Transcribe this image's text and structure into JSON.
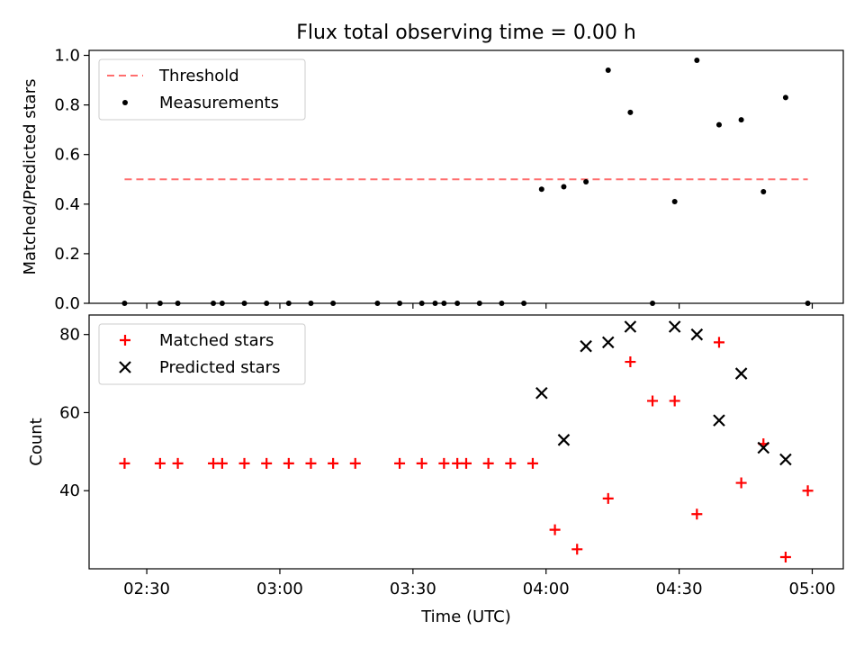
{
  "title": "Flux total observing time = 0.00 h",
  "colors": {
    "threshold": "#ff6e6e",
    "measurements": "#000000",
    "matched": "#ff0000",
    "predicted": "#000000"
  },
  "chart_data": [
    {
      "type": "scatter",
      "panel": "top",
      "ylabel": "Matched/Predicted stars",
      "ylim": [
        0,
        1.02
      ],
      "yticks": [
        0.0,
        0.2,
        0.4,
        0.6,
        0.8,
        1.0
      ],
      "ytick_labels": [
        "0.0",
        "0.2",
        "0.4",
        "0.6",
        "0.8",
        "1.0"
      ],
      "xlim": [
        "02:17",
        "05:07"
      ],
      "xticks": [
        "02:30",
        "03:00",
        "03:30",
        "04:00",
        "04:30",
        "05:00"
      ],
      "legend": {
        "placement": "upper-left",
        "entries": [
          "Threshold",
          "Measurements"
        ]
      },
      "series": [
        {
          "name": "Threshold",
          "type": "line",
          "style": "dashed",
          "x": [
            "02:25",
            "04:59"
          ],
          "y": [
            0.5,
            0.5
          ]
        },
        {
          "name": "Measurements",
          "type": "scatter",
          "x": [
            "02:25",
            "02:33",
            "02:37",
            "02:45",
            "02:47",
            "02:52",
            "02:57",
            "03:02",
            "03:07",
            "03:12",
            "03:22",
            "03:27",
            "03:32",
            "03:35",
            "03:37",
            "03:40",
            "03:45",
            "03:50",
            "03:55",
            "03:59",
            "04:04",
            "04:09",
            "04:14",
            "04:19",
            "04:24",
            "04:29",
            "04:34",
            "04:39",
            "04:44",
            "04:49",
            "04:54",
            "04:59"
          ],
          "y": [
            0,
            0,
            0,
            0,
            0,
            0,
            0,
            0,
            0,
            0,
            0,
            0,
            0,
            0,
            0,
            0,
            0,
            0,
            0,
            0.46,
            0.47,
            0.49,
            0.94,
            0.77,
            0,
            0.41,
            0.98,
            0.72,
            0.74,
            0.45,
            0.83,
            0
          ]
        }
      ]
    },
    {
      "type": "scatter",
      "panel": "bottom",
      "xlabel": "Time (UTC)",
      "ylabel": "Count",
      "ylim": [
        20,
        85
      ],
      "yticks": [
        40,
        60,
        80
      ],
      "ytick_labels": [
        "40",
        "60",
        "80"
      ],
      "xlim": [
        "02:17",
        "05:07"
      ],
      "xticks": [
        "02:30",
        "03:00",
        "03:30",
        "04:00",
        "04:30",
        "05:00"
      ],
      "xtick_labels": [
        "02:30",
        "03:00",
        "03:30",
        "04:00",
        "04:30",
        "05:00"
      ],
      "legend": {
        "placement": "upper-left",
        "entries": [
          "Matched stars",
          "Predicted stars"
        ]
      },
      "series": [
        {
          "name": "Matched stars",
          "marker": "plus",
          "x": [
            "02:25",
            "02:33",
            "02:37",
            "02:45",
            "02:47",
            "02:52",
            "02:57",
            "03:02",
            "03:07",
            "03:12",
            "03:17",
            "03:27",
            "03:32",
            "03:37",
            "03:40",
            "03:42",
            "03:47",
            "03:52",
            "03:57",
            "04:02",
            "04:07",
            "04:14",
            "04:19",
            "04:24",
            "04:29",
            "04:34",
            "04:39",
            "04:44",
            "04:49",
            "04:54",
            "04:59"
          ],
          "y": [
            47,
            47,
            47,
            47,
            47,
            47,
            47,
            47,
            47,
            47,
            47,
            47,
            47,
            47,
            47,
            47,
            47,
            47,
            47,
            30,
            25,
            38,
            73,
            63,
            63,
            34,
            78,
            42,
            52,
            23,
            40
          ]
        },
        {
          "name": "Predicted stars",
          "marker": "x",
          "x": [
            "03:59",
            "04:04",
            "04:09",
            "04:14",
            "04:19",
            "04:29",
            "04:34",
            "04:39",
            "04:44",
            "04:49",
            "04:54"
          ],
          "y": [
            65,
            53,
            77,
            78,
            82,
            82,
            80,
            58,
            70,
            51,
            48
          ]
        }
      ]
    }
  ]
}
